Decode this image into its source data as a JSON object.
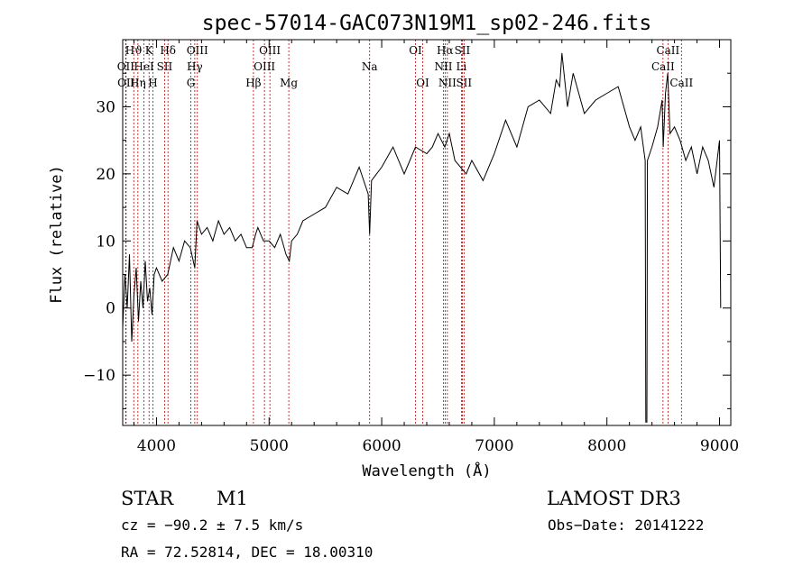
{
  "chart_data": {
    "type": "line",
    "title": "spec-57014-GAC073N19M1_sp02-246.fits",
    "xlabel": "Wavelength (Å)",
    "ylabel": "Flux (relative)",
    "xlim": [
      3700,
      9100
    ],
    "ylim": [
      -17.5,
      40
    ],
    "xticks": [
      4000,
      5000,
      6000,
      7000,
      8000,
      9000
    ],
    "yticks": [
      -10,
      0,
      10,
      20,
      30
    ],
    "grid": false,
    "legend": "none",
    "series": [
      {
        "x": [
          3700,
          3720,
          3740,
          3760,
          3780,
          3800,
          3820,
          3840,
          3860,
          3880,
          3900,
          3920,
          3940,
          3960,
          3980,
          4000,
          4050,
          4100,
          4150,
          4200,
          4250,
          4300,
          4340,
          4360,
          4400,
          4450,
          4500,
          4550,
          4600,
          4650,
          4700,
          4750,
          4800,
          4850,
          4880,
          4900,
          4950,
          5000,
          5050,
          5100,
          5150,
          5180,
          5200,
          5250,
          5300,
          5400,
          5500,
          5600,
          5700,
          5800,
          5880,
          5893,
          5910,
          6000,
          6100,
          6200,
          6250,
          6300,
          6400,
          6450,
          6500,
          6560,
          6600,
          6650,
          6700,
          6750,
          6800,
          6900,
          7000,
          7100,
          7200,
          7300,
          7400,
          7500,
          7550,
          7580,
          7600,
          7650,
          7700,
          7800,
          7900,
          8000,
          8100,
          8150,
          8200,
          8250,
          8300,
          8340,
          8345,
          8355,
          8360,
          8400,
          8450,
          8490,
          8500,
          8520,
          8540,
          8560,
          8600,
          8650,
          8700,
          8750,
          8800,
          8850,
          8900,
          8950,
          9000,
          9010
        ],
        "y": [
          -3,
          5,
          0,
          8,
          -5,
          2,
          6,
          -2,
          4,
          0,
          7,
          1,
          3,
          -1,
          5,
          6,
          4,
          5,
          9,
          7,
          10,
          9,
          6,
          13,
          11,
          12,
          10,
          13,
          11,
          12,
          10,
          11,
          9,
          9,
          11,
          12,
          10,
          10,
          9,
          11,
          8,
          7,
          10,
          11,
          13,
          14,
          15,
          18,
          17,
          21,
          17,
          11,
          19,
          21,
          24,
          20,
          22,
          24,
          23,
          24,
          26,
          24,
          26,
          22,
          21,
          20,
          22,
          19,
          23,
          28,
          24,
          30,
          31,
          29,
          34,
          33,
          38,
          30,
          35,
          29,
          31,
          32,
          33,
          30,
          27,
          25,
          27,
          22,
          -17,
          -17,
          22,
          24,
          27,
          31,
          24,
          32,
          35,
          26,
          27,
          25,
          22,
          24,
          20,
          24,
          22,
          18,
          25,
          0
        ]
      }
    ],
    "lines": [
      {
        "label": "Hϑ",
        "x": 3798,
        "row": 0
      },
      {
        "label": "K",
        "x": 3934,
        "row": 0
      },
      {
        "label": "Hδ",
        "x": 4102,
        "row": 0
      },
      {
        "label": "OIII",
        "x": 4363,
        "row": 0
      },
      {
        "label": "OIII",
        "x": 5007,
        "row": 0
      },
      {
        "label": "OI",
        "x": 6300,
        "row": 0
      },
      {
        "label": "Hα",
        "x": 6563,
        "row": 0
      },
      {
        "label": "SII",
        "x": 6716,
        "row": 0
      },
      {
        "label": "CaII",
        "x": 8542,
        "row": 0
      },
      {
        "label": "OII",
        "x": 3727,
        "row": 1
      },
      {
        "label": "HeI",
        "x": 3889,
        "row": 1
      },
      {
        "label": "SII",
        "x": 4072,
        "row": 1
      },
      {
        "label": "Hγ",
        "x": 4340,
        "row": 1
      },
      {
        "label": "OIII",
        "x": 4959,
        "row": 1
      },
      {
        "label": "Na",
        "x": 5893,
        "row": 1
      },
      {
        "label": "NII",
        "x": 6548,
        "row": 1
      },
      {
        "label": "Li",
        "x": 6708,
        "row": 1
      },
      {
        "label": "CaII",
        "x": 8498,
        "row": 1
      },
      {
        "label": "OII",
        "x": 3730,
        "row": 2
      },
      {
        "label": "Hη",
        "x": 3835,
        "row": 2
      },
      {
        "label": "H",
        "x": 3968,
        "row": 2
      },
      {
        "label": "G",
        "x": 4305,
        "row": 2
      },
      {
        "label": "Hβ",
        "x": 4861,
        "row": 2
      },
      {
        "label": "Mg",
        "x": 5175,
        "row": 2
      },
      {
        "label": "OI",
        "x": 6364,
        "row": 2
      },
      {
        "label": "NII",
        "x": 6583,
        "row": 2
      },
      {
        "label": "SII",
        "x": 6731,
        "row": 2
      },
      {
        "label": "CaII",
        "x": 8662,
        "row": 2
      }
    ]
  },
  "info": {
    "object_class": "STAR",
    "subclass": "M1",
    "survey": "LAMOST DR3",
    "cz": "cz = −90.2 ± 7.5 km/s",
    "obs_date": "Obs−Date: 20141222",
    "coords": "RA =  72.52814, DEC =  18.00310"
  }
}
